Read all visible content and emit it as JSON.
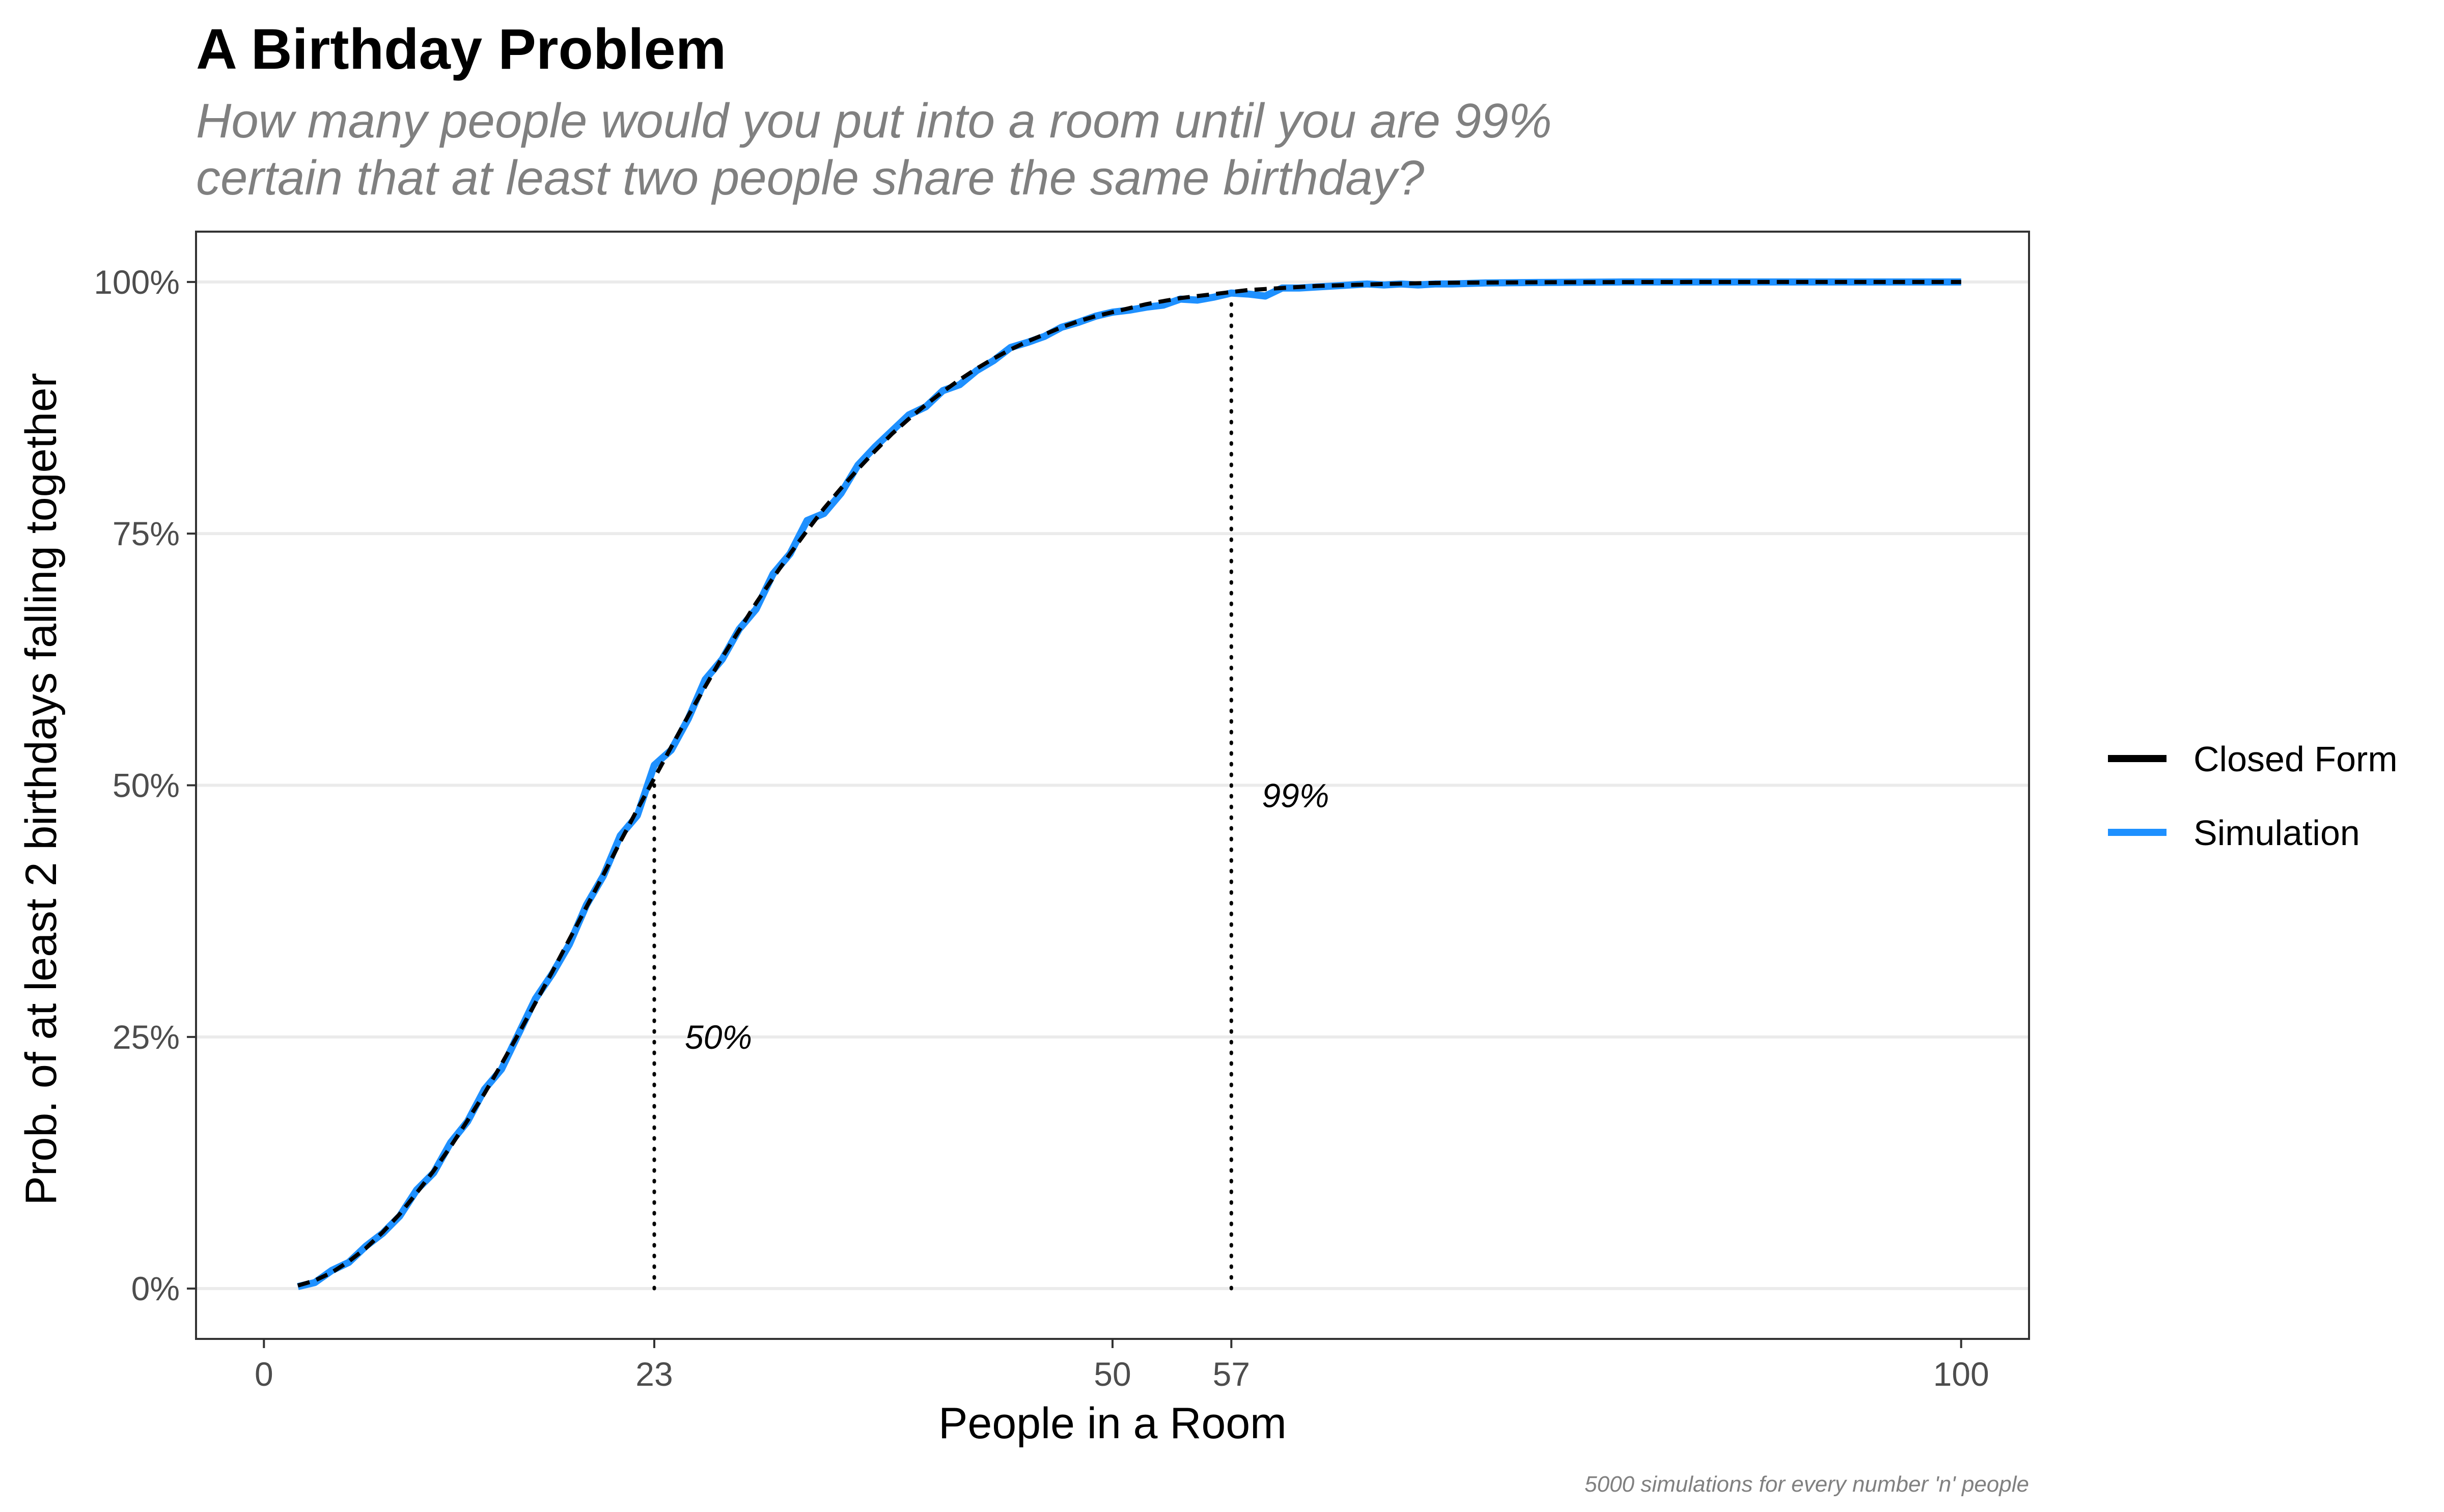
{
  "chart_data": {
    "type": "line",
    "title": "A Birthday Problem",
    "subtitle_lines": [
      "How many people would you put into a room until you are 99%",
      "certain that at least two people share the same birthday?"
    ],
    "xlabel": "People in a Room",
    "ylabel": "Prob. of at least 2 birthdays falling together",
    "caption": "5000 simulations for every number 'n' people",
    "xlim": [
      -4,
      104
    ],
    "ylim": [
      -0.05,
      1.05
    ],
    "x_ticks": [
      0,
      23,
      50,
      57,
      100
    ],
    "x_tick_labels": [
      "0",
      "23",
      "50",
      "57",
      "100"
    ],
    "y_ticks": [
      0,
      0.25,
      0.5,
      0.75,
      1
    ],
    "y_tick_labels": [
      "0%",
      "25%",
      "50%",
      "75%",
      "100%"
    ],
    "grid": "horizontal major",
    "legend_position": "right",
    "annotations": [
      {
        "label": "50%",
        "x": 23,
        "y_top": 0.507,
        "label_y": 0.25
      },
      {
        "label": "99%",
        "x": 57,
        "y_top": 0.99,
        "label_y": 0.49
      }
    ],
    "series": [
      {
        "name": "Closed Form",
        "color": "#000000",
        "style": "dashed",
        "x": [
          2,
          3,
          4,
          5,
          6,
          7,
          8,
          9,
          10,
          11,
          12,
          13,
          14,
          15,
          16,
          17,
          18,
          19,
          20,
          21,
          22,
          23,
          24,
          25,
          26,
          27,
          28,
          29,
          30,
          31,
          32,
          33,
          34,
          35,
          36,
          37,
          38,
          39,
          40,
          41,
          42,
          43,
          44,
          45,
          46,
          47,
          48,
          49,
          50,
          51,
          52,
          53,
          54,
          55,
          56,
          57,
          58,
          59,
          60,
          62,
          64,
          66,
          68,
          70,
          75,
          80,
          85,
          90,
          95,
          100
        ],
        "values": [
          0.003,
          0.008,
          0.016,
          0.027,
          0.04,
          0.056,
          0.074,
          0.095,
          0.117,
          0.141,
          0.167,
          0.194,
          0.223,
          0.253,
          0.284,
          0.315,
          0.347,
          0.379,
          0.411,
          0.444,
          0.476,
          0.507,
          0.538,
          0.569,
          0.598,
          0.627,
          0.654,
          0.681,
          0.706,
          0.73,
          0.753,
          0.775,
          0.795,
          0.814,
          0.832,
          0.849,
          0.864,
          0.878,
          0.891,
          0.903,
          0.914,
          0.924,
          0.933,
          0.941,
          0.948,
          0.955,
          0.961,
          0.966,
          0.97,
          0.974,
          0.978,
          0.981,
          0.984,
          0.986,
          0.988,
          0.99,
          0.992,
          0.993,
          0.994,
          0.996,
          0.997,
          0.998,
          0.9987,
          0.9992,
          0.9997,
          0.9999,
          1.0,
          1.0,
          1.0,
          1.0
        ]
      },
      {
        "name": "Simulation",
        "color": "#1e90ff",
        "style": "solid",
        "x": [
          2,
          3,
          4,
          5,
          6,
          7,
          8,
          9,
          10,
          11,
          12,
          13,
          14,
          15,
          16,
          17,
          18,
          19,
          20,
          21,
          22,
          23,
          24,
          25,
          26,
          27,
          28,
          29,
          30,
          31,
          32,
          33,
          34,
          35,
          36,
          37,
          38,
          39,
          40,
          41,
          42,
          43,
          44,
          45,
          46,
          47,
          48,
          49,
          50,
          51,
          52,
          53,
          54,
          55,
          56,
          57,
          58,
          59,
          60,
          61,
          62,
          63,
          64,
          65,
          66,
          67,
          68,
          69,
          70,
          72,
          75,
          80,
          85,
          90,
          95,
          100
        ],
        "values": [
          0.002,
          0.006,
          0.018,
          0.026,
          0.042,
          0.055,
          0.072,
          0.098,
          0.115,
          0.145,
          0.166,
          0.198,
          0.218,
          0.253,
          0.288,
          0.313,
          0.342,
          0.381,
          0.41,
          0.45,
          0.47,
          0.52,
          0.535,
          0.566,
          0.605,
          0.625,
          0.655,
          0.675,
          0.71,
          0.73,
          0.763,
          0.77,
          0.79,
          0.818,
          0.836,
          0.852,
          0.868,
          0.876,
          0.892,
          0.898,
          0.912,
          0.922,
          0.935,
          0.94,
          0.946,
          0.955,
          0.96,
          0.966,
          0.97,
          0.972,
          0.975,
          0.977,
          0.983,
          0.982,
          0.985,
          0.989,
          0.988,
          0.986,
          0.994,
          0.994,
          0.995,
          0.996,
          0.997,
          0.998,
          0.997,
          0.998,
          0.997,
          0.998,
          0.998,
          0.999,
          0.9995,
          1.0,
          1.0,
          1.0,
          1.0,
          1.0
        ]
      }
    ]
  }
}
